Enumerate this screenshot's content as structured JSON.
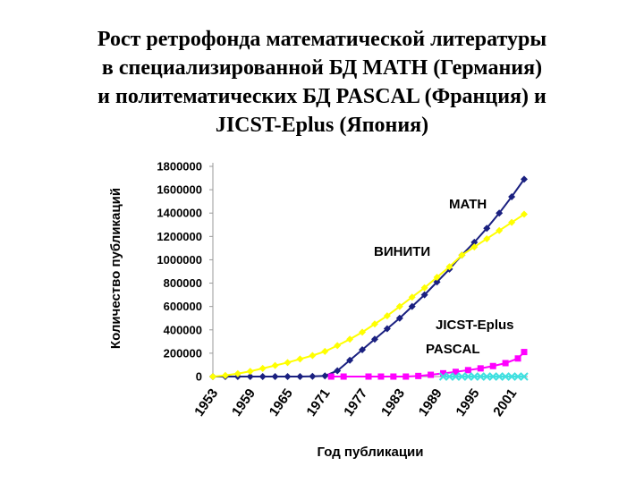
{
  "title_lines": [
    "Рост ретрофонда математической литературы",
    "в специализированной БД MATH (Германия)",
    "и политематических БД PASCAL (Франция) и",
    "JICST-Eplus (Япония)"
  ],
  "chart_data": {
    "type": "line",
    "xlabel": "Год публикации",
    "ylabel": "Количество публикаций",
    "ylim": [
      0,
      1800000
    ],
    "xlim": [
      1953,
      2003
    ],
    "grid": false,
    "legend": "inline labels",
    "y_ticks": [
      "0",
      "200000",
      "400000",
      "600000",
      "800000",
      "1000000",
      "1200000",
      "1400000",
      "1600000",
      "1800000"
    ],
    "x_ticks": [
      "1953",
      "1959",
      "1965",
      "1971",
      "1977",
      "1983",
      "1989",
      "1995",
      "2001"
    ],
    "series": [
      {
        "name": "MATH",
        "color": "#1a2080",
        "marker": "diamond",
        "x": [
          1953,
          1955,
          1957,
          1959,
          1961,
          1963,
          1965,
          1967,
          1969,
          1971,
          1973,
          1975,
          1977,
          1979,
          1981,
          1983,
          1985,
          1987,
          1989,
          1991,
          1993,
          1995,
          1997,
          1999,
          2001,
          2003
        ],
        "y": [
          0,
          0,
          0,
          0,
          0,
          0,
          0,
          0,
          2000,
          6000,
          50000,
          140000,
          230000,
          320000,
          410000,
          500000,
          600000,
          700000,
          810000,
          920000,
          1040000,
          1150000,
          1270000,
          1400000,
          1540000,
          1690000
        ]
      },
      {
        "name": "ВИНИТИ",
        "color": "#ffff00",
        "marker": "diamond",
        "x": [
          1953,
          1955,
          1957,
          1959,
          1961,
          1963,
          1965,
          1967,
          1969,
          1971,
          1973,
          1975,
          1977,
          1979,
          1981,
          1983,
          1985,
          1987,
          1989,
          1991,
          1993,
          1995,
          1997,
          1999,
          2001,
          2003
        ],
        "y": [
          0,
          10000,
          25000,
          45000,
          70000,
          95000,
          120000,
          150000,
          180000,
          215000,
          265000,
          320000,
          380000,
          450000,
          520000,
          600000,
          680000,
          760000,
          850000,
          940000,
          1040000,
          1110000,
          1180000,
          1250000,
          1320000,
          1390000
        ]
      },
      {
        "name": "PASCAL",
        "color": "#ff00ff",
        "marker": "square",
        "x": [
          1972,
          1974,
          1978,
          1980,
          1982,
          1984,
          1986,
          1988,
          1990,
          1992,
          1994,
          1996,
          1998,
          2000,
          2002,
          2003
        ],
        "y": [
          0,
          0,
          0,
          0,
          0,
          0,
          5000,
          15000,
          28000,
          40000,
          55000,
          70000,
          90000,
          115000,
          155000,
          210000
        ]
      },
      {
        "name": "JICST-Eplus",
        "color": "#40e0e0",
        "marker": "cross",
        "x": [
          1990,
          1991,
          1992,
          1993,
          1994,
          1995,
          1996,
          1997,
          1998,
          1999,
          2000,
          2001,
          2002,
          2003
        ],
        "y": [
          0,
          0,
          0,
          0,
          0,
          0,
          0,
          0,
          0,
          0,
          0,
          0,
          0,
          0
        ]
      }
    ],
    "labels": [
      "MATH",
      "ВИНИТИ",
      "JICST-Eplus",
      "PASCAL"
    ]
  }
}
